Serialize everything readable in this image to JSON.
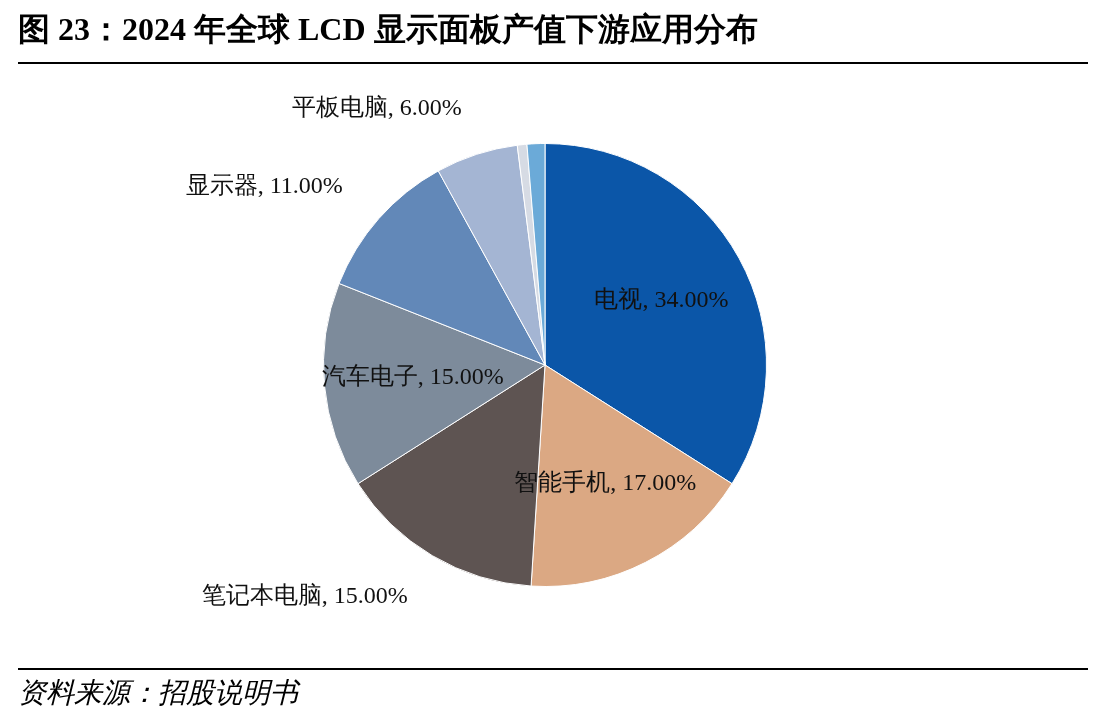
{
  "chart_data": {
    "type": "pie",
    "title": "图 23：2024 年全球 LCD 显示面板产值下游应用分布",
    "categories": [
      "电视",
      "智能手机",
      "笔记本电脑",
      "汽车电子",
      "显示器",
      "平板电脑",
      null,
      null
    ],
    "values": [
      34,
      17,
      15,
      15,
      11,
      6,
      0.7,
      1.3
    ],
    "value_labels": [
      "34.00%",
      "17.00%",
      "15.00%",
      "15.00%",
      "11.00%",
      "6.00%",
      null,
      null
    ],
    "colors": [
      "#0b56a8",
      "#dba883",
      "#5e5452",
      "#7d8b9b",
      "#6288b8",
      "#a4b5d3",
      "#d6dbe4",
      "#6baad8"
    ],
    "legend": false,
    "annotations": [
      "资料来源：招股说明书"
    ]
  }
}
